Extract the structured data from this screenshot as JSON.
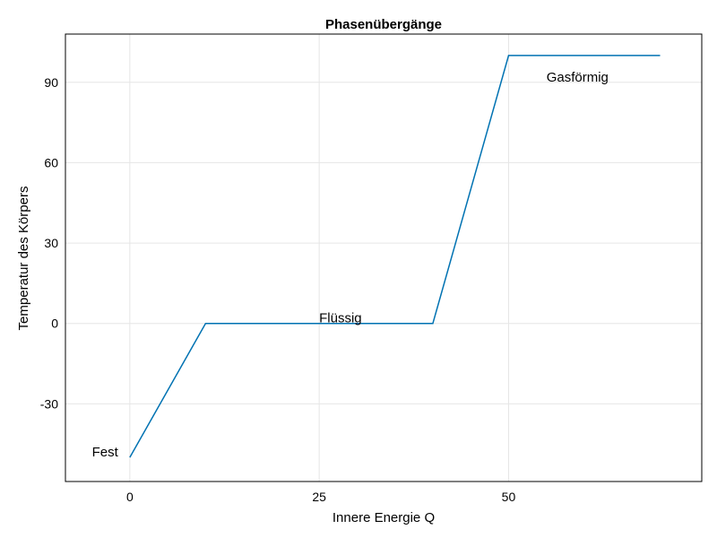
{
  "chart_data": {
    "type": "line",
    "title": "Phasenübergänge",
    "xlabel": "Innere Energie Q",
    "ylabel": "Temperatur des Körpers",
    "xlim": [
      -8.5,
      75.5
    ],
    "ylim": [
      -59,
      108
    ],
    "xticks": [
      0,
      25,
      50
    ],
    "yticks": [
      -30,
      0,
      30,
      60,
      90
    ],
    "grid": true,
    "series": [
      {
        "color": "#0072b2",
        "x": [
          0,
          10,
          40,
          50,
          70
        ],
        "y": [
          -50,
          0,
          0,
          100,
          100
        ]
      }
    ],
    "annotations": [
      {
        "text": "Fest",
        "x": -5,
        "y": -48
      },
      {
        "text": "Flüssig",
        "x": 25,
        "y": 2
      },
      {
        "text": "Gasförmig",
        "x": 55,
        "y": 92
      }
    ]
  }
}
